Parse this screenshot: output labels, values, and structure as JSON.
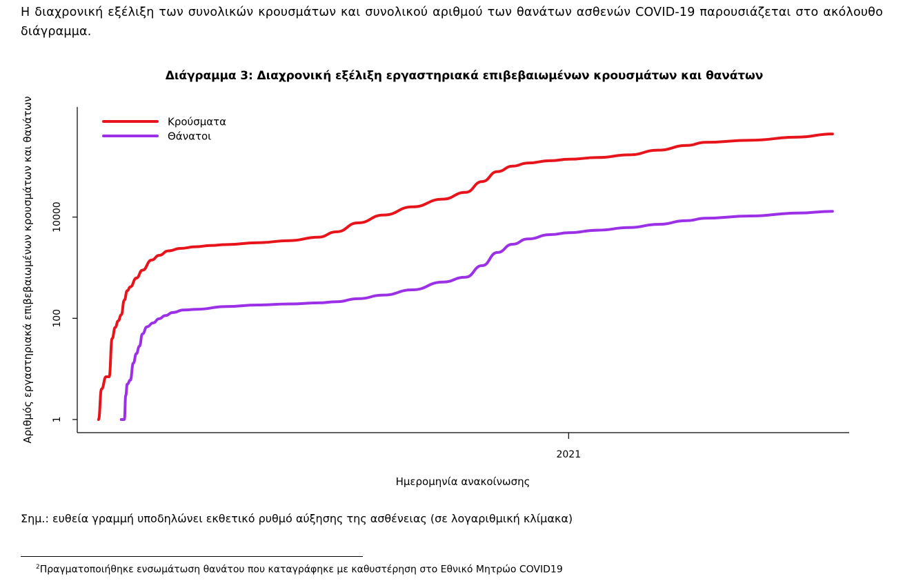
{
  "intro_text": "Η διαχρονική εξέλιξη των συνολικών κρουσμάτων και συνολικού αριθμού των θανάτων ασθενών COVID-19 παρουσιάζεται στο ακόλουθο διάγραμμα.",
  "note_text": "Σημ.: ευθεία γραμμή υποδηλώνει εκθετικό ρυθμό αύξησης της ασθένειας (σε λογαριθμική κλίμακα)",
  "footnote": {
    "number": "2",
    "text": "Πραγματοποιήθηκε ενσωμάτωση θανάτου που καταγράφηκε με καθυστέρηση στο Εθνικό Μητρώο COVID19"
  },
  "colors": {
    "cases": "#e8141b",
    "deaths": "#9b30e6"
  },
  "chart_data": {
    "type": "line",
    "title": "Διάγραμμα 3: Διαχρονική εξέλιξη εργαστηριακά επιβεβαιωμένων κρουσμάτων και θανάτων",
    "xlabel": "Ημερομηνία ανακοίνωσης",
    "ylabel": "Αριθμός εργαστηριακά επιβεβαιωμένων κρουσμάτων και θανάτων",
    "y_scale": "log",
    "y_ticks": [
      1,
      100,
      10000
    ],
    "y_tick_labels": [
      "1",
      "100",
      "10000"
    ],
    "ylim": [
      0.55,
      1500000
    ],
    "xlim": [
      "2020-02-12",
      "2021-07-05"
    ],
    "x_ticks": [
      "2021-01-01"
    ],
    "x_tick_labels": [
      "2021"
    ],
    "grid": false,
    "legend_position": "top-left",
    "series": [
      {
        "name": "Κρούσματα",
        "x": [
          "2020-02-26",
          "2020-02-28",
          "2020-03-02",
          "2020-03-04",
          "2020-03-06",
          "2020-03-08",
          "2020-03-10",
          "2020-03-12",
          "2020-03-14",
          "2020-03-16",
          "2020-03-18",
          "2020-03-22",
          "2020-03-26",
          "2020-04-01",
          "2020-04-06",
          "2020-04-12",
          "2020-04-20",
          "2020-04-30",
          "2020-05-10",
          "2020-05-20",
          "2020-06-10",
          "2020-07-01",
          "2020-07-20",
          "2020-08-01",
          "2020-08-15",
          "2020-09-01",
          "2020-09-20",
          "2020-10-10",
          "2020-10-25",
          "2020-11-05",
          "2020-11-15",
          "2020-11-25",
          "2020-12-05",
          "2020-12-20",
          "2021-01-01",
          "2021-01-20",
          "2021-02-10",
          "2021-03-01",
          "2021-03-20",
          "2021-04-01",
          "2021-05-01",
          "2021-06-01",
          "2021-06-24"
        ],
        "y": [
          1,
          4,
          7,
          7,
          40,
          66,
          89,
          117,
          228,
          352,
          418,
          624,
          892,
          1415,
          1755,
          2145,
          2401,
          2591,
          2744,
          2853,
          3121,
          3432,
          4007,
          5123,
          7684,
          10998,
          15928,
          22652,
          30782,
          50351,
          79167,
          101287,
          117014,
          130000,
          138850,
          150000,
          170000,
          210000,
          260000,
          300000,
          330000,
          380000,
          440000
        ]
      },
      {
        "name": "Θάνατοι",
        "x": [
          "2020-03-12",
          "2020-03-14",
          "2020-03-15",
          "2020-03-16",
          "2020-03-18",
          "2020-03-20",
          "2020-03-22",
          "2020-03-24",
          "2020-03-26",
          "2020-03-29",
          "2020-04-02",
          "2020-04-06",
          "2020-04-10",
          "2020-04-15",
          "2020-04-22",
          "2020-05-01",
          "2020-05-20",
          "2020-06-10",
          "2020-07-01",
          "2020-07-20",
          "2020-08-01",
          "2020-08-15",
          "2020-09-01",
          "2020-09-20",
          "2020-10-10",
          "2020-10-25",
          "2020-11-05",
          "2020-11-15",
          "2020-11-25",
          "2020-12-05",
          "2020-12-20",
          "2021-01-01",
          "2021-01-20",
          "2021-02-10",
          "2021-03-01",
          "2021-03-20",
          "2021-04-01",
          "2021-05-01",
          "2021-06-01",
          "2021-06-24"
        ],
        "y": [
          1,
          1,
          3,
          5,
          6,
          13,
          20,
          28,
          49,
          68,
          81,
          98,
          113,
          130,
          146,
          151,
          171,
          183,
          192,
          202,
          212,
          244,
          288,
          366,
          520,
          650,
          1100,
          2000,
          2900,
          3700,
          4500,
          4900,
          5500,
          6200,
          7200,
          8500,
          9500,
          10500,
          12000,
          13000
        ]
      }
    ]
  }
}
